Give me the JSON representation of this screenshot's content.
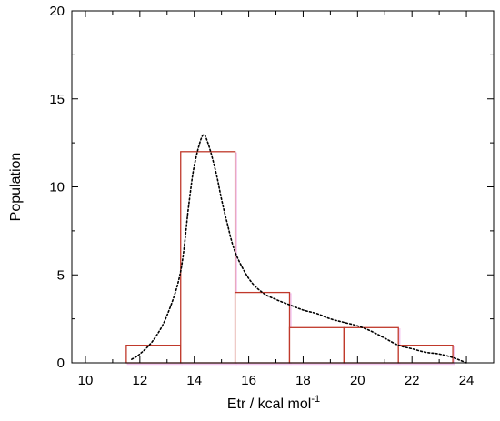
{
  "chart_data": {
    "type": "bar",
    "subtype": "histogram with smoothed density curve",
    "xlabel": "Etr / kcal mol",
    "xlabel_superscript": "-1",
    "ylabel": "Population",
    "xlim": [
      9.5,
      25
    ],
    "ylim": [
      0,
      20
    ],
    "x_ticks": [
      10,
      12,
      14,
      16,
      18,
      20,
      22,
      24
    ],
    "y_ticks": [
      0,
      5,
      10,
      15,
      20
    ],
    "grid": false,
    "bins": [
      {
        "start": 9.5,
        "end": 11.5,
        "count": 0
      },
      {
        "start": 11.5,
        "end": 13.5,
        "count": 1
      },
      {
        "start": 13.5,
        "end": 15.5,
        "count": 12
      },
      {
        "start": 15.5,
        "end": 17.5,
        "count": 4
      },
      {
        "start": 17.5,
        "end": 19.5,
        "count": 2
      },
      {
        "start": 19.5,
        "end": 21.5,
        "count": 2
      },
      {
        "start": 21.5,
        "end": 23.5,
        "count": 1
      }
    ],
    "density_curve": {
      "style": "dotted",
      "points": [
        [
          11.7,
          0.2
        ],
        [
          12.0,
          0.5
        ],
        [
          12.5,
          1.3
        ],
        [
          13.0,
          2.7
        ],
        [
          13.5,
          5.2
        ],
        [
          13.8,
          9.0
        ],
        [
          14.0,
          11.2
        ],
        [
          14.3,
          12.9
        ],
        [
          14.5,
          12.5
        ],
        [
          14.8,
          10.8
        ],
        [
          15.0,
          9.3
        ],
        [
          15.2,
          8.0
        ],
        [
          15.5,
          6.3
        ],
        [
          16.0,
          4.8
        ],
        [
          16.5,
          4.0
        ],
        [
          17.0,
          3.6
        ],
        [
          17.5,
          3.3
        ],
        [
          18.0,
          3.0
        ],
        [
          18.5,
          2.8
        ],
        [
          19.0,
          2.5
        ],
        [
          19.5,
          2.3
        ],
        [
          20.0,
          2.1
        ],
        [
          20.5,
          1.8
        ],
        [
          21.0,
          1.4
        ],
        [
          21.5,
          1.0
        ],
        [
          22.0,
          0.8
        ],
        [
          22.5,
          0.6
        ],
        [
          23.0,
          0.5
        ],
        [
          23.5,
          0.3
        ],
        [
          24.0,
          0.0
        ]
      ]
    },
    "colors": {
      "bar_stroke": "#c0392b",
      "bar_fill": "#ffffff",
      "curve": "#000000",
      "axis": "#000000"
    }
  }
}
